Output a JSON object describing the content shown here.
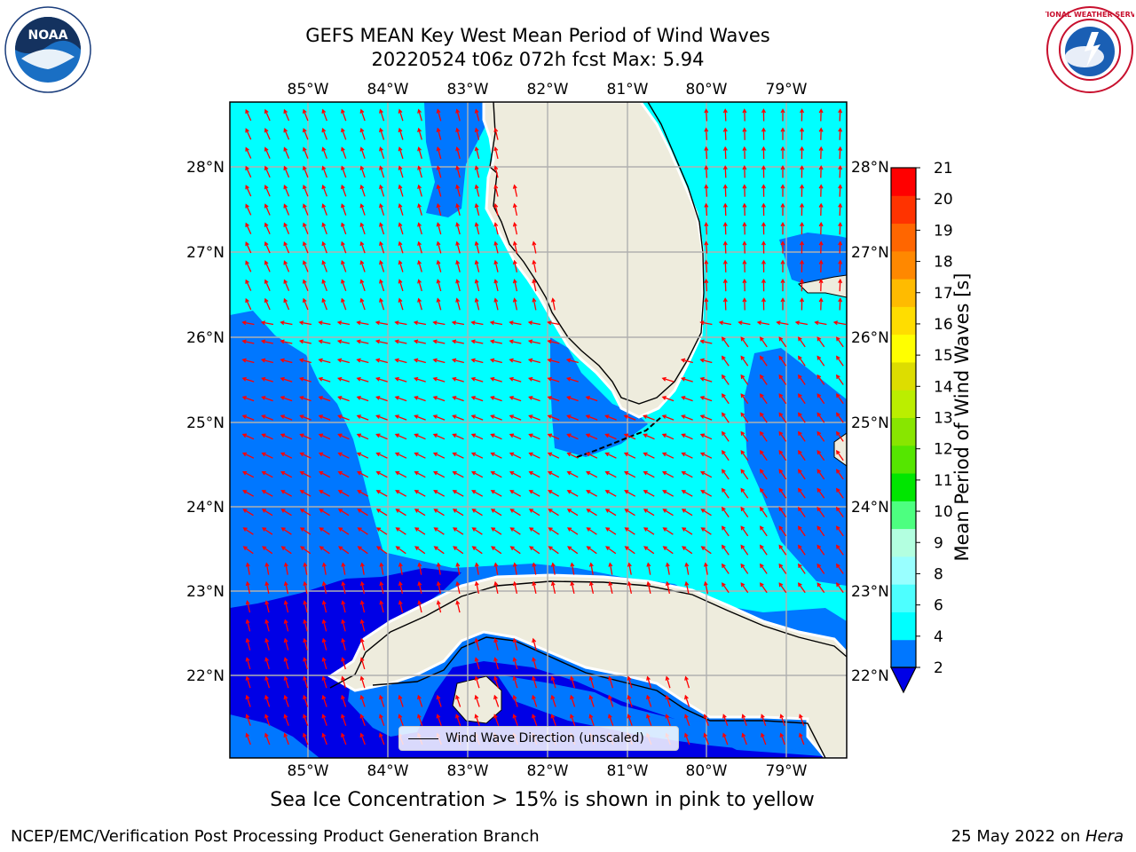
{
  "title": {
    "line1": "GEFS MEAN Key West Mean Period of Wind Waves",
    "line2": "20220524 t06z 072h fcst   Max: 5.94"
  },
  "logos": {
    "left": "noaa-logo",
    "left_text": "NOAA",
    "right": "nws-logo",
    "right_text": "NATIONAL WEATHER SERVICE"
  },
  "map": {
    "lon_labels": [
      "85°W",
      "84°W",
      "83°W",
      "82°W",
      "81°W",
      "80°W",
      "79°W"
    ],
    "lat_labels": [
      "28°N",
      "27°N",
      "26°N",
      "25°N",
      "24°N",
      "23°N",
      "22°N"
    ],
    "land_color": "#eeecdd",
    "ocean_colors": {
      "2-4": "#0077ff",
      "4-6": "#00ffff",
      "<2": "#0000e6"
    },
    "arrow_color": "#ff0000",
    "grid": true,
    "legend_label": "Wind Wave Direction (unscaled)"
  },
  "colorbar": {
    "label": "Mean Period of Wind Waves [s]",
    "ticks": [
      "2",
      "4",
      "6",
      "8",
      "9",
      "10",
      "11",
      "12",
      "13",
      "14",
      "15",
      "16",
      "17",
      "18",
      "19",
      "20",
      "21"
    ],
    "colors": [
      "#0077ff",
      "#00ffff",
      "#4dffff",
      "#99ffff",
      "#b3ffe0",
      "#4dff80",
      "#00e600",
      "#55e600",
      "#88e600",
      "#bbee00",
      "#dddd00",
      "#ffff00",
      "#ffdd00",
      "#ffbb00",
      "#ff8800",
      "#ff6600",
      "#ff3300",
      "#ff0000"
    ],
    "extend_color": "#0000e6"
  },
  "notes": {
    "ice": "Sea Ice Concentration > 15% is shown in pink to yellow"
  },
  "footer": {
    "left": "NCEP/EMC/Verification Post Processing Product Generation Branch",
    "right_date": "25 May 2022 on ",
    "right_machine": "Hera"
  }
}
